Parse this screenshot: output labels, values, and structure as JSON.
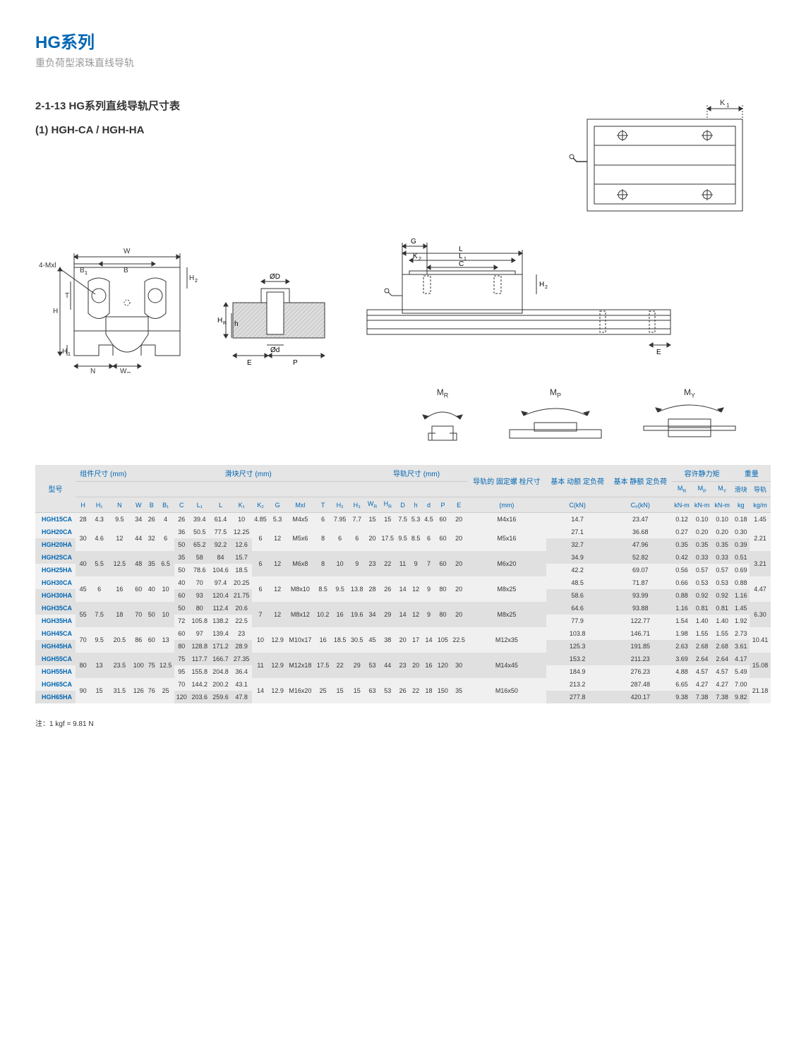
{
  "header": {
    "title": "HG系列",
    "subtitle": "重负荷型滚珠直线导轨"
  },
  "section": {
    "title": "2-1-13 HG系列直线导轨尺寸表",
    "subtitle": "(1) HGH-CA / HGH-HA"
  },
  "diagrams": {
    "top_view": {
      "labels": {
        "K1": "K₁"
      },
      "stroke": "#333",
      "fill": "#fff"
    },
    "cross_section": {
      "labels": {
        "W": "W",
        "B": "B",
        "B1": "B₁",
        "H": "H",
        "H1": "H₁",
        "H2": "H₂",
        "T": "T",
        "N": "N",
        "WR": "W",
        "WR_sub": "R",
        "Mxl": "4-Mxl"
      },
      "stroke": "#333"
    },
    "side_profile": {
      "labels": {
        "HR": "H",
        "HR_sub": "R",
        "h": "h",
        "OD": "ØD",
        "Od": "Ød",
        "E": "E",
        "P": "P"
      },
      "stroke": "#333"
    },
    "side_view": {
      "labels": {
        "G": "G",
        "L": "L",
        "K2": "K₂",
        "L1": "L₁",
        "C": "C",
        "H2": "H₂",
        "E": "E"
      },
      "stroke": "#333"
    },
    "moments": {
      "MR": {
        "label": "M",
        "sub": "R"
      },
      "MP": {
        "label": "M",
        "sub": "P"
      },
      "MY": {
        "label": "M",
        "sub": "Y"
      }
    }
  },
  "table": {
    "group_headers": {
      "model": "型号",
      "assembly": "组件尺寸\n(mm)",
      "block": "滑块尺寸 (mm)",
      "rail": "导轨尺寸 (mm)",
      "bolt": "导轨的\n固定螺\n栓尺寸",
      "dynamic": "基本\n动额\n定负荷",
      "static": "基本\n静额\n定负荷",
      "moment": "容许静力矩",
      "weight": "重量"
    },
    "sub_headers": {
      "MR": "M",
      "MR_sub": "R",
      "MP": "M",
      "MP_sub": "P",
      "MY": "M",
      "MY_sub": "Y",
      "block_w": "滑块",
      "rail_w": "导轨"
    },
    "col_headers": [
      "H",
      "H₁",
      "N",
      "W",
      "B",
      "B₁",
      "C",
      "L₁",
      "L",
      "K₁",
      "K₂",
      "G",
      "Mxl",
      "T",
      "H₂",
      "H₃",
      "W",
      "H",
      "D",
      "h",
      "d",
      "P",
      "E",
      "(mm)",
      "C(kN)",
      "C₀(kN)",
      "kN-m",
      "kN-m",
      "kN-m",
      "kg",
      "kg/m"
    ],
    "col_sub_r": {
      "16": "R",
      "17": "R"
    },
    "rows": [
      {
        "model": "HGH15CA",
        "H": "28",
        "H1": "4.3",
        "N": "9.5",
        "W": "34",
        "B": "26",
        "B1": "4",
        "C": "26",
        "L1": "39.4",
        "L": "61.4",
        "K1": "10",
        "K2": "4.85",
        "G": "5.3",
        "Mxl": "M4x5",
        "T": "6",
        "h2": "7.95",
        "h3": "7.7",
        "WR": "15",
        "HR": "15",
        "D": "7.5",
        "h": "5.3",
        "d": "4.5",
        "P": "60",
        "E": "20",
        "bolt": "M4x16",
        "Cdyn": "14.7",
        "Cstat": "23.47",
        "MR": "0.12",
        "MP": "0.10",
        "MY": "0.10",
        "wb": "0.18",
        "wr": "1.45"
      },
      {
        "model": "HGH20CA",
        "H": "30",
        "H1": "4.6",
        "N": "12",
        "W": "44",
        "B": "32",
        "B1": "6",
        "C": "36",
        "L1": "50.5",
        "L": "77.5",
        "K1": "12.25",
        "K2": "6",
        "G": "12",
        "Mxl": "M5x6",
        "T": "8",
        "h2": "6",
        "h3": "6",
        "WR": "20",
        "HR": "17.5",
        "D": "9.5",
        "h": "8.5",
        "d": "6",
        "P": "60",
        "E": "20",
        "bolt": "M5x16",
        "Cdyn": "27.1",
        "Cstat": "36.68",
        "MR": "0.27",
        "MP": "0.20",
        "MY": "0.20",
        "wb": "0.30",
        "wr": "2.21",
        "share": [
          "H",
          "H1",
          "N",
          "W",
          "B",
          "B1",
          "K2",
          "G",
          "Mxl",
          "T",
          "h2",
          "h3",
          "WR",
          "HR",
          "D",
          "h",
          "d",
          "P",
          "E",
          "bolt",
          "wr"
        ]
      },
      {
        "model": "HGH20HA",
        "C": "50",
        "L1": "65.2",
        "L": "92.2",
        "K1": "12.6",
        "Cdyn": "32.7",
        "Cstat": "47.96",
        "MR": "0.35",
        "MP": "0.35",
        "MY": "0.35",
        "wb": "0.39"
      },
      {
        "model": "HGH25CA",
        "H": "40",
        "H1": "5.5",
        "N": "12.5",
        "W": "48",
        "B": "35",
        "B1": "6.5",
        "C": "35",
        "L1": "58",
        "L": "84",
        "K1": "15.7",
        "K2": "6",
        "G": "12",
        "Mxl": "M6x8",
        "T": "8",
        "h2": "10",
        "h3": "9",
        "WR": "23",
        "HR": "22",
        "D": "11",
        "h": "9",
        "d": "7",
        "P": "60",
        "E": "20",
        "bolt": "M6x20",
        "Cdyn": "34.9",
        "Cstat": "52.82",
        "MR": "0.42",
        "MP": "0.33",
        "MY": "0.33",
        "wb": "0.51",
        "wr": "3.21",
        "share": [
          "H",
          "H1",
          "N",
          "W",
          "B",
          "B1",
          "K2",
          "G",
          "Mxl",
          "T",
          "h2",
          "h3",
          "WR",
          "HR",
          "D",
          "h",
          "d",
          "P",
          "E",
          "bolt",
          "wr"
        ]
      },
      {
        "model": "HGH25HA",
        "C": "50",
        "L1": "78.6",
        "L": "104.6",
        "K1": "18.5",
        "Cdyn": "42.2",
        "Cstat": "69.07",
        "MR": "0.56",
        "MP": "0.57",
        "MY": "0.57",
        "wb": "0.69"
      },
      {
        "model": "HGH30CA",
        "H": "45",
        "H1": "6",
        "N": "16",
        "W": "60",
        "B": "40",
        "B1": "10",
        "C": "40",
        "L1": "70",
        "L": "97.4",
        "K1": "20.25",
        "K2": "6",
        "G": "12",
        "Mxl": "M8x10",
        "T": "8.5",
        "h2": "9.5",
        "h3": "13.8",
        "WR": "28",
        "HR": "26",
        "D": "14",
        "h": "12",
        "d": "9",
        "P": "80",
        "E": "20",
        "bolt": "M8x25",
        "Cdyn": "48.5",
        "Cstat": "71.87",
        "MR": "0.66",
        "MP": "0.53",
        "MY": "0.53",
        "wb": "0.88",
        "wr": "4.47",
        "share": [
          "H",
          "H1",
          "N",
          "W",
          "B",
          "B1",
          "K2",
          "G",
          "Mxl",
          "T",
          "h2",
          "h3",
          "WR",
          "HR",
          "D",
          "h",
          "d",
          "P",
          "E",
          "bolt",
          "wr"
        ]
      },
      {
        "model": "HGH30HA",
        "C": "60",
        "L1": "93",
        "L": "120.4",
        "K1": "21.75",
        "Cdyn": "58.6",
        "Cstat": "93.99",
        "MR": "0.88",
        "MP": "0.92",
        "MY": "0.92",
        "wb": "1.16"
      },
      {
        "model": "HGH35CA",
        "H": "55",
        "H1": "7.5",
        "N": "18",
        "W": "70",
        "B": "50",
        "B1": "10",
        "C": "50",
        "L1": "80",
        "L": "112.4",
        "K1": "20.6",
        "K2": "7",
        "G": "12",
        "Mxl": "M8x12",
        "T": "10.2",
        "h2": "16",
        "h3": "19.6",
        "WR": "34",
        "HR": "29",
        "D": "14",
        "h": "12",
        "d": "9",
        "P": "80",
        "E": "20",
        "bolt": "M8x25",
        "Cdyn": "64.6",
        "Cstat": "93.88",
        "MR": "1.16",
        "MP": "0.81",
        "MY": "0.81",
        "wb": "1.45",
        "wr": "6.30",
        "share": [
          "H",
          "H1",
          "N",
          "W",
          "B",
          "B1",
          "K2",
          "G",
          "Mxl",
          "T",
          "h2",
          "h3",
          "WR",
          "HR",
          "D",
          "h",
          "d",
          "P",
          "E",
          "bolt",
          "wr"
        ]
      },
      {
        "model": "HGH35HA",
        "C": "72",
        "L1": "105.8",
        "L": "138.2",
        "K1": "22.5",
        "Cdyn": "77.9",
        "Cstat": "122.77",
        "MR": "1.54",
        "MP": "1.40",
        "MY": "1.40",
        "wb": "1.92"
      },
      {
        "model": "HGH45CA",
        "H": "70",
        "H1": "9.5",
        "N": "20.5",
        "W": "86",
        "B": "60",
        "B1": "13",
        "C": "60",
        "L1": "97",
        "L": "139.4",
        "K1": "23",
        "K2": "10",
        "G": "12.9",
        "Mxl": "M10x17",
        "T": "16",
        "h2": "18.5",
        "h3": "30.5",
        "WR": "45",
        "HR": "38",
        "D": "20",
        "h": "17",
        "d": "14",
        "P": "105",
        "E": "22.5",
        "bolt": "M12x35",
        "Cdyn": "103.8",
        "Cstat": "146.71",
        "MR": "1.98",
        "MP": "1.55",
        "MY": "1.55",
        "wb": "2.73",
        "wr": "10.41",
        "share": [
          "H",
          "H1",
          "N",
          "W",
          "B",
          "B1",
          "K2",
          "G",
          "Mxl",
          "T",
          "h2",
          "h3",
          "WR",
          "HR",
          "D",
          "h",
          "d",
          "P",
          "E",
          "bolt",
          "wr"
        ]
      },
      {
        "model": "HGH45HA",
        "C": "80",
        "L1": "128.8",
        "L": "171.2",
        "K1": "28.9",
        "Cdyn": "125.3",
        "Cstat": "191.85",
        "MR": "2.63",
        "MP": "2.68",
        "MY": "2.68",
        "wb": "3.61"
      },
      {
        "model": "HGH55CA",
        "H": "80",
        "H1": "13",
        "N": "23.5",
        "W": "100",
        "B": "75",
        "B1": "12.5",
        "C": "75",
        "L1": "117.7",
        "L": "166.7",
        "K1": "27.35",
        "K2": "11",
        "G": "12.9",
        "Mxl": "M12x18",
        "T": "17.5",
        "h2": "22",
        "h3": "29",
        "WR": "53",
        "HR": "44",
        "D": "23",
        "h": "20",
        "d": "16",
        "P": "120",
        "E": "30",
        "bolt": "M14x45",
        "Cdyn": "153.2",
        "Cstat": "211.23",
        "MR": "3.69",
        "MP": "2.64",
        "MY": "2.64",
        "wb": "4.17",
        "wr": "15.08",
        "share": [
          "H",
          "H1",
          "N",
          "W",
          "B",
          "B1",
          "K2",
          "G",
          "Mxl",
          "T",
          "h2",
          "h3",
          "WR",
          "HR",
          "D",
          "h",
          "d",
          "P",
          "E",
          "bolt",
          "wr"
        ]
      },
      {
        "model": "HGH55HA",
        "C": "95",
        "L1": "155.8",
        "L": "204.8",
        "K1": "36.4",
        "Cdyn": "184.9",
        "Cstat": "276.23",
        "MR": "4.88",
        "MP": "4.57",
        "MY": "4.57",
        "wb": "5.49"
      },
      {
        "model": "HGH65CA",
        "H": "90",
        "H1": "15",
        "N": "31.5",
        "W": "126",
        "B": "76",
        "B1": "25",
        "C": "70",
        "L1": "144.2",
        "L": "200.2",
        "K1": "43.1",
        "K2": "14",
        "G": "12.9",
        "Mxl": "M16x20",
        "T": "25",
        "h2": "15",
        "h3": "15",
        "WR": "63",
        "HR": "53",
        "D": "26",
        "h": "22",
        "d": "18",
        "P": "150",
        "E": "35",
        "bolt": "M16x50",
        "Cdyn": "213.2",
        "Cstat": "287.48",
        "MR": "6.65",
        "MP": "4.27",
        "MY": "4.27",
        "wb": "7.00",
        "wr": "21.18",
        "share": [
          "H",
          "H1",
          "N",
          "W",
          "B",
          "B1",
          "K2",
          "G",
          "Mxl",
          "T",
          "h2",
          "h3",
          "WR",
          "HR",
          "D",
          "h",
          "d",
          "P",
          "E",
          "bolt",
          "wr"
        ]
      },
      {
        "model": "HGH65HA",
        "C": "120",
        "L1": "203.6",
        "L": "259.6",
        "K1": "47.8",
        "Cdyn": "277.8",
        "Cstat": "420.17",
        "MR": "9.38",
        "MP": "7.38",
        "MY": "7.38",
        "wb": "9.82"
      }
    ]
  },
  "footnote": "注：1 kgf = 9.81 N",
  "colors": {
    "primary": "#0066b3",
    "grey_light": "#f0f0f0",
    "grey_med": "#e0e0e0",
    "grey_hdr": "#e5e5e5",
    "text": "#333333"
  }
}
